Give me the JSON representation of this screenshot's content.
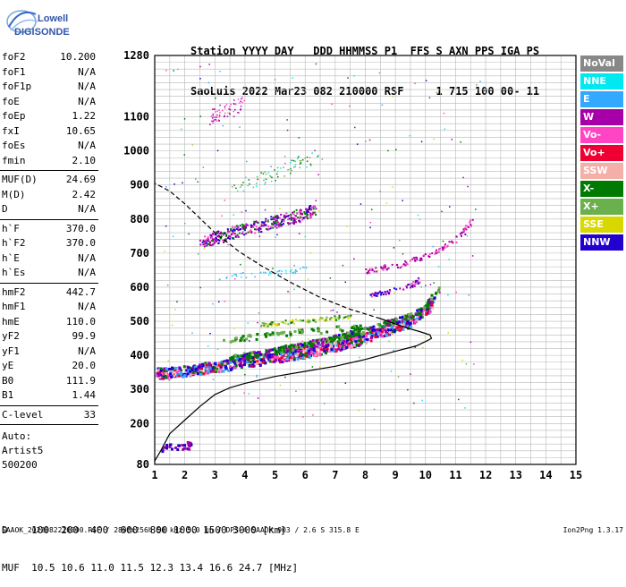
{
  "logo": {
    "line1": "Lowell",
    "line2": "DIGISONDE"
  },
  "header": {
    "row1": "Station YYYY DAY   DDD HHMMSS P1  FFS S AXN PPS IGA PS",
    "row2": "SaoLuis 2022 Mar23 082 210000 RSF     1 715 100 00- 11"
  },
  "params": [
    {
      "name": "foF2",
      "value": "10.200"
    },
    {
      "name": "foF1",
      "value": "N/A"
    },
    {
      "name": "foF1p",
      "value": "N/A"
    },
    {
      "name": "foE",
      "value": "N/A"
    },
    {
      "name": "foEp",
      "value": "1.22"
    },
    {
      "name": "fxI",
      "value": "10.65"
    },
    {
      "name": "foEs",
      "value": "N/A"
    },
    {
      "name": "fmin",
      "value": "2.10"
    },
    {
      "sep": true
    },
    {
      "name": "MUF(D)",
      "value": "24.69"
    },
    {
      "name": "M(D)",
      "value": "2.42"
    },
    {
      "name": "D",
      "value": "N/A"
    },
    {
      "sep": true
    },
    {
      "name": "h`F",
      "value": "370.0"
    },
    {
      "name": "h`F2",
      "value": "370.0"
    },
    {
      "name": "h`E",
      "value": "N/A"
    },
    {
      "name": "h`Es",
      "value": "N/A"
    },
    {
      "sep": true
    },
    {
      "name": "hmF2",
      "value": "442.7"
    },
    {
      "name": "hmF1",
      "value": "N/A"
    },
    {
      "name": "hmE",
      "value": "110.0"
    },
    {
      "name": "yF2",
      "value": "99.9"
    },
    {
      "name": "yF1",
      "value": "N/A"
    },
    {
      "name": "yE",
      "value": "20.0"
    },
    {
      "name": "B0",
      "value": "111.9"
    },
    {
      "name": "B1",
      "value": "1.44"
    },
    {
      "sep": true
    },
    {
      "name": "C-level",
      "value": "33"
    },
    {
      "sep": true
    }
  ],
  "autoscale": {
    "line1": "Auto:",
    "line2": "Artist5",
    "line3": "500200"
  },
  "legend": [
    {
      "label": "NoVal",
      "color": "#888888"
    },
    {
      "label": "NNE",
      "color": "#00e8f0"
    },
    {
      "label": "E",
      "color": "#33a8ff"
    },
    {
      "label": "W",
      "color": "#a800a8"
    },
    {
      "label": "Vo-",
      "color": "#ff44c4"
    },
    {
      "label": "Vo+",
      "color": "#ee0033"
    },
    {
      "label": "SSW",
      "color": "#f4b0a8"
    },
    {
      "label": "X-",
      "color": "#007a00"
    },
    {
      "label": "X+",
      "color": "#6ab04c"
    },
    {
      "label": "SSE",
      "color": "#d8d800"
    },
    {
      "label": "NNW",
      "color": "#2200d0"
    }
  ],
  "dmuf": {
    "d_row": "D    100  200  400  600  800 1000 1500 3000 [km]",
    "muf_row": "MUF  10.5 10.6 11.0 11.5 12.3 13.4 16.6 24.7 [MHz]"
  },
  "footer": "SAAOK_2022082210000.RSF / 280fx256h 50 kHz 5.0 km / DPS-4 SAAOK 903 / 2.6 S 315.8 E",
  "version": "Ion2Png 1.3.17",
  "chart_data": {
    "type": "scatter",
    "xlim": [
      1,
      15
    ],
    "ylim": [
      80,
      1280
    ],
    "x_ticks": [
      1,
      2,
      3,
      4,
      5,
      6,
      7,
      8,
      9,
      10,
      11,
      12,
      13,
      14,
      15
    ],
    "y_ticks": [
      80,
      200,
      300,
      400,
      500,
      600,
      700,
      800,
      900,
      1000,
      1100,
      1280
    ],
    "grid": true,
    "legend_position": "right",
    "profile": [
      [
        1,
        90
      ],
      [
        1.2,
        120
      ],
      [
        1.5,
        170
      ],
      [
        2,
        210
      ],
      [
        2.5,
        250
      ],
      [
        3,
        285
      ],
      [
        3.5,
        305
      ],
      [
        4,
        318
      ],
      [
        5,
        338
      ],
      [
        6,
        353
      ],
      [
        7,
        368
      ],
      [
        8,
        388
      ],
      [
        9,
        412
      ],
      [
        9.7,
        428
      ],
      [
        10.1,
        445
      ],
      [
        10.2,
        450
      ],
      [
        10.15,
        460
      ],
      [
        9.8,
        470
      ],
      [
        9.4,
        480
      ],
      [
        8.5,
        508
      ]
    ],
    "extrapolated_profile": [
      [
        8.5,
        508
      ],
      [
        7.5,
        535
      ],
      [
        6.5,
        570
      ],
      [
        5.5,
        615
      ],
      [
        4.5,
        665
      ],
      [
        3.8,
        705
      ],
      [
        3,
        760
      ],
      [
        2,
        845
      ],
      [
        1.5,
        882
      ],
      [
        1,
        905
      ]
    ],
    "trace_o": [
      [
        1.05,
        350
      ],
      [
        1.5,
        352
      ],
      [
        2,
        357
      ],
      [
        2.5,
        363
      ],
      [
        3,
        370
      ],
      [
        3.5,
        376
      ],
      [
        4,
        383
      ],
      [
        4.5,
        390
      ],
      [
        5,
        397
      ],
      [
        5.5,
        404
      ],
      [
        6,
        412
      ],
      [
        6.5,
        420
      ],
      [
        7,
        430
      ],
      [
        7.5,
        442
      ],
      [
        8,
        455
      ],
      [
        8.5,
        470
      ],
      [
        9,
        485
      ],
      [
        9.5,
        505
      ],
      [
        10,
        535
      ],
      [
        10.2,
        565
      ]
    ],
    "trace_x": [
      [
        3.5,
        395
      ],
      [
        4,
        402
      ],
      [
        4.5,
        410
      ],
      [
        5,
        418
      ],
      [
        5.5,
        426
      ],
      [
        6,
        434
      ],
      [
        6.5,
        444
      ],
      [
        7,
        455
      ],
      [
        7.5,
        465
      ],
      [
        8,
        478
      ],
      [
        8.5,
        492
      ],
      [
        9,
        505
      ],
      [
        9.5,
        520
      ],
      [
        10,
        545
      ],
      [
        10.4,
        600
      ]
    ],
    "trace_2f": [
      [
        2.5,
        735
      ],
      [
        3,
        745
      ],
      [
        3.5,
        760
      ],
      [
        4,
        772
      ],
      [
        4.5,
        782
      ],
      [
        5,
        795
      ],
      [
        5.5,
        805
      ],
      [
        6,
        818
      ],
      [
        6.3,
        830
      ]
    ],
    "trace_w_high": [
      [
        8,
        650
      ],
      [
        8.5,
        658
      ],
      [
        9,
        665
      ],
      [
        9.5,
        680
      ],
      [
        10,
        695
      ],
      [
        10.5,
        715
      ],
      [
        11,
        745
      ],
      [
        11.3,
        770
      ],
      [
        11.5,
        795
      ]
    ],
    "trace_vo_mid": [
      [
        8,
        575
      ],
      [
        8.5,
        585
      ],
      [
        9,
        595
      ],
      [
        9.5,
        608
      ],
      [
        9.8,
        625
      ]
    ],
    "trace_ylw": [
      [
        4.5,
        492
      ],
      [
        5,
        496
      ],
      [
        5.5,
        500
      ],
      [
        6,
        504
      ],
      [
        6.5,
        508
      ],
      [
        7,
        512
      ],
      [
        7.5,
        516
      ]
    ],
    "trace_grn_low": [
      [
        3,
        445
      ],
      [
        4,
        455
      ],
      [
        5,
        465
      ],
      [
        6,
        472
      ],
      [
        7,
        480
      ],
      [
        7.8,
        488
      ]
    ],
    "trace_cyan_mid": [
      [
        3,
        630
      ],
      [
        3.5,
        633
      ],
      [
        4,
        636
      ],
      [
        4.5,
        640
      ],
      [
        5,
        645
      ],
      [
        5.5,
        650
      ],
      [
        6,
        655
      ]
    ],
    "trace_grn_upper": [
      [
        3.5,
        890
      ],
      [
        4,
        905
      ],
      [
        4.5,
        920
      ],
      [
        5,
        935
      ],
      [
        5.5,
        955
      ],
      [
        6,
        975
      ],
      [
        6.5,
        990
      ]
    ],
    "trace_w_top": [
      [
        2.8,
        1100
      ],
      [
        3,
        1110
      ],
      [
        3.3,
        1120
      ],
      [
        3.7,
        1130
      ],
      [
        4,
        1140
      ]
    ],
    "trace_low": [
      [
        1.2,
        130
      ],
      [
        1.5,
        132
      ],
      [
        2,
        138
      ],
      [
        2.2,
        140
      ]
    ]
  }
}
